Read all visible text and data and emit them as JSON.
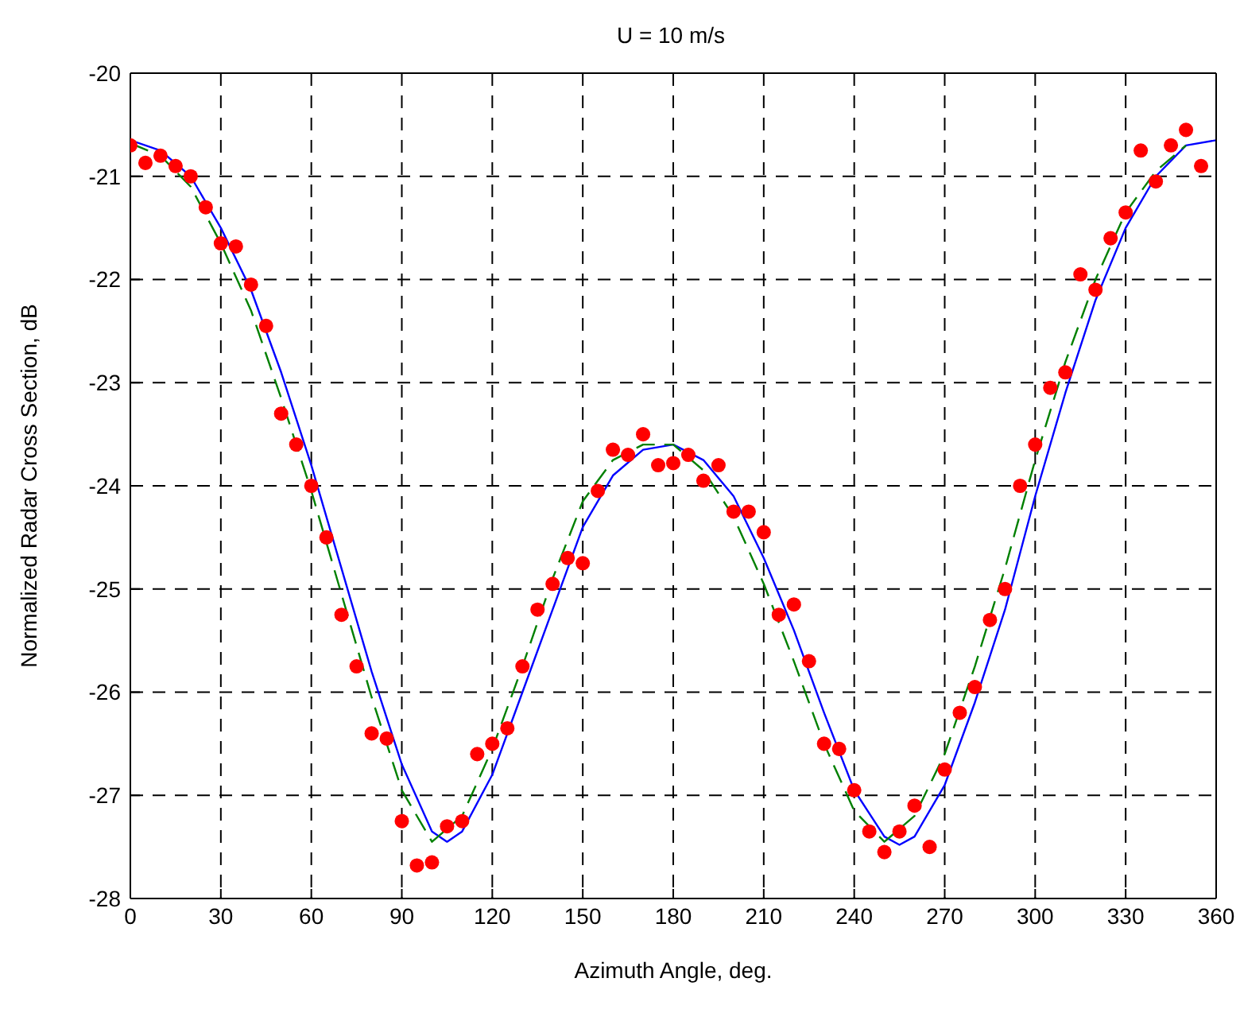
{
  "chart_data": {
    "type": "line",
    "title": "U = 10 m/s",
    "xlabel": "Azimuth Angle, deg.",
    "ylabel": "Normalized Radar Cross Section, dB",
    "xlim": [
      0,
      360
    ],
    "xticks": [
      0,
      30,
      60,
      90,
      120,
      150,
      180,
      210,
      240,
      270,
      300,
      330,
      360
    ],
    "ylim": [
      -28,
      -20
    ],
    "yticks": [
      -28,
      -27,
      -26,
      -25,
      -24,
      -23,
      -22,
      -21,
      -20
    ],
    "grid": true,
    "legend": false,
    "series": [
      {
        "type": "scatter",
        "color": "#ff0000",
        "marker": "circle",
        "x": [
          0,
          5,
          10,
          15,
          20,
          25,
          30,
          35,
          40,
          45,
          50,
          55,
          60,
          65,
          70,
          75,
          80,
          85,
          90,
          95,
          100,
          105,
          110,
          115,
          120,
          125,
          130,
          135,
          140,
          145,
          150,
          155,
          160,
          165,
          170,
          175,
          180,
          185,
          190,
          195,
          200,
          205,
          210,
          215,
          220,
          225,
          230,
          235,
          240,
          245,
          250,
          255,
          260,
          265,
          270,
          275,
          280,
          285,
          290,
          295,
          300,
          305,
          310,
          315,
          320,
          325,
          330,
          335,
          340,
          345,
          350,
          355
        ],
        "values": [
          -20.7,
          -20.87,
          -20.8,
          -20.9,
          -21.0,
          -21.3,
          -21.65,
          -21.68,
          -22.05,
          -22.45,
          -23.3,
          -23.6,
          -24.0,
          -24.5,
          -25.25,
          -25.75,
          -26.4,
          -26.45,
          -27.25,
          -27.68,
          -27.65,
          -27.3,
          -27.25,
          -26.6,
          -26.5,
          -26.35,
          -25.75,
          -25.2,
          -24.95,
          -24.7,
          -24.75,
          -24.05,
          -23.65,
          -23.7,
          -23.5,
          -23.8,
          -23.78,
          -23.7,
          -23.95,
          -23.8,
          -24.25,
          -24.25,
          -24.45,
          -25.25,
          -25.15,
          -25.7,
          -26.5,
          -26.55,
          -26.95,
          -27.35,
          -27.55,
          -27.35,
          -27.1,
          -27.5,
          -26.75,
          -26.2,
          -25.95,
          -25.3,
          -25.0,
          -24.0,
          -23.6,
          -23.05,
          -22.9,
          -21.95,
          -22.1,
          -21.6,
          -21.35,
          -20.75,
          -21.05,
          -20.7,
          -20.55,
          -20.9
        ]
      },
      {
        "color": "#0000ff",
        "marker": "none",
        "line_style": "solid",
        "x": [
          0,
          10,
          20,
          30,
          40,
          50,
          60,
          70,
          80,
          90,
          100,
          105,
          110,
          120,
          130,
          140,
          150,
          160,
          170,
          180,
          190,
          200,
          210,
          220,
          230,
          240,
          250,
          255,
          260,
          270,
          280,
          290,
          300,
          310,
          320,
          330,
          340,
          350,
          360
        ],
        "values": [
          -20.65,
          -20.75,
          -21.0,
          -21.5,
          -22.1,
          -22.9,
          -23.8,
          -24.8,
          -25.8,
          -26.7,
          -27.35,
          -27.45,
          -27.35,
          -26.8,
          -26.0,
          -25.2,
          -24.4,
          -23.9,
          -23.65,
          -23.6,
          -23.75,
          -24.1,
          -24.7,
          -25.4,
          -26.2,
          -26.95,
          -27.4,
          -27.48,
          -27.4,
          -26.9,
          -26.1,
          -25.2,
          -24.1,
          -23.1,
          -22.2,
          -21.5,
          -21.0,
          -20.7,
          -20.65
        ]
      },
      {
        "color": "#008000",
        "marker": "none",
        "line_style": "dashed",
        "x": [
          0,
          10,
          20,
          30,
          40,
          50,
          60,
          70,
          80,
          90,
          100,
          110,
          120,
          130,
          140,
          150,
          160,
          170,
          180,
          190,
          200,
          210,
          220,
          230,
          240,
          250,
          260,
          270,
          280,
          290,
          300,
          310,
          320,
          330,
          340,
          350
        ],
        "values": [
          -20.68,
          -20.8,
          -21.1,
          -21.65,
          -22.3,
          -23.15,
          -24.05,
          -25.05,
          -26.05,
          -26.95,
          -27.45,
          -27.2,
          -26.55,
          -25.75,
          -24.9,
          -24.15,
          -23.75,
          -23.6,
          -23.6,
          -23.85,
          -24.3,
          -24.95,
          -25.7,
          -26.5,
          -27.15,
          -27.45,
          -27.2,
          -26.6,
          -25.75,
          -24.8,
          -23.75,
          -22.8,
          -22.0,
          -21.35,
          -20.95,
          -20.7
        ]
      }
    ]
  }
}
